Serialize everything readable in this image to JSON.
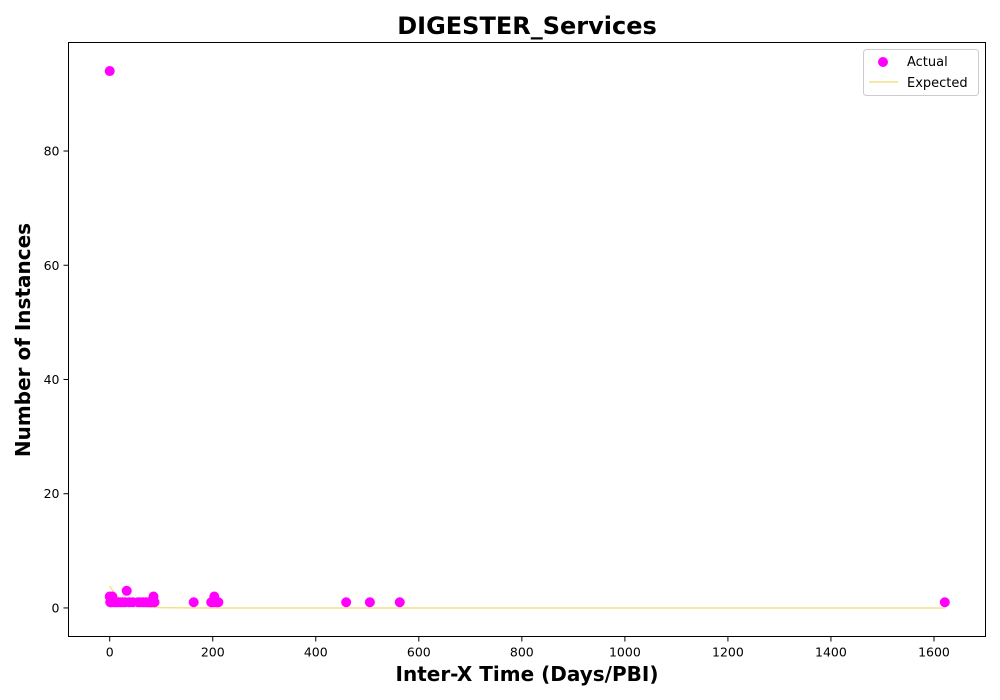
{
  "chart_data": {
    "type": "scatter",
    "title": "DIGESTER_Services",
    "xlabel": "Inter-X Time (Days/PBI)",
    "ylabel": "Number of Instances",
    "xlim": [
      -80,
      1700
    ],
    "ylim": [
      -5,
      99
    ],
    "xticks": [
      0,
      200,
      400,
      600,
      800,
      1000,
      1200,
      1400,
      1600
    ],
    "yticks": [
      0,
      20,
      40,
      60,
      80
    ],
    "grid": false,
    "legend_position": "top-right",
    "series": [
      {
        "name": "Actual",
        "kind": "scatter",
        "color": "#ff00ff",
        "points": [
          [
            0,
            94
          ],
          [
            0,
            2
          ],
          [
            1,
            1
          ],
          [
            3,
            1
          ],
          [
            5,
            2
          ],
          [
            8,
            1
          ],
          [
            12,
            1
          ],
          [
            15,
            1
          ],
          [
            20,
            1
          ],
          [
            25,
            1
          ],
          [
            30,
            1
          ],
          [
            33,
            3
          ],
          [
            38,
            1
          ],
          [
            45,
            1
          ],
          [
            55,
            1
          ],
          [
            60,
            1
          ],
          [
            65,
            1
          ],
          [
            70,
            1
          ],
          [
            75,
            1
          ],
          [
            80,
            1
          ],
          [
            85,
            2
          ],
          [
            87,
            1
          ],
          [
            163,
            1
          ],
          [
            197,
            1
          ],
          [
            201,
            1
          ],
          [
            203,
            2
          ],
          [
            207,
            1
          ],
          [
            211,
            1
          ],
          [
            459,
            1
          ],
          [
            505,
            1
          ],
          [
            563,
            1
          ],
          [
            1621,
            1
          ]
        ]
      },
      {
        "name": "Expected",
        "kind": "line",
        "color": "#f5e08a",
        "points": [
          [
            0,
            3.8
          ],
          [
            10,
            2.5
          ],
          [
            20,
            1.6
          ],
          [
            30,
            1.05
          ],
          [
            40,
            0.68
          ],
          [
            50,
            0.44
          ],
          [
            60,
            0.29
          ],
          [
            80,
            0.12
          ],
          [
            100,
            0.05
          ],
          [
            150,
            0.01
          ],
          [
            200,
            0
          ],
          [
            400,
            0
          ],
          [
            800,
            0
          ],
          [
            1200,
            0
          ],
          [
            1621,
            0
          ]
        ]
      }
    ]
  }
}
